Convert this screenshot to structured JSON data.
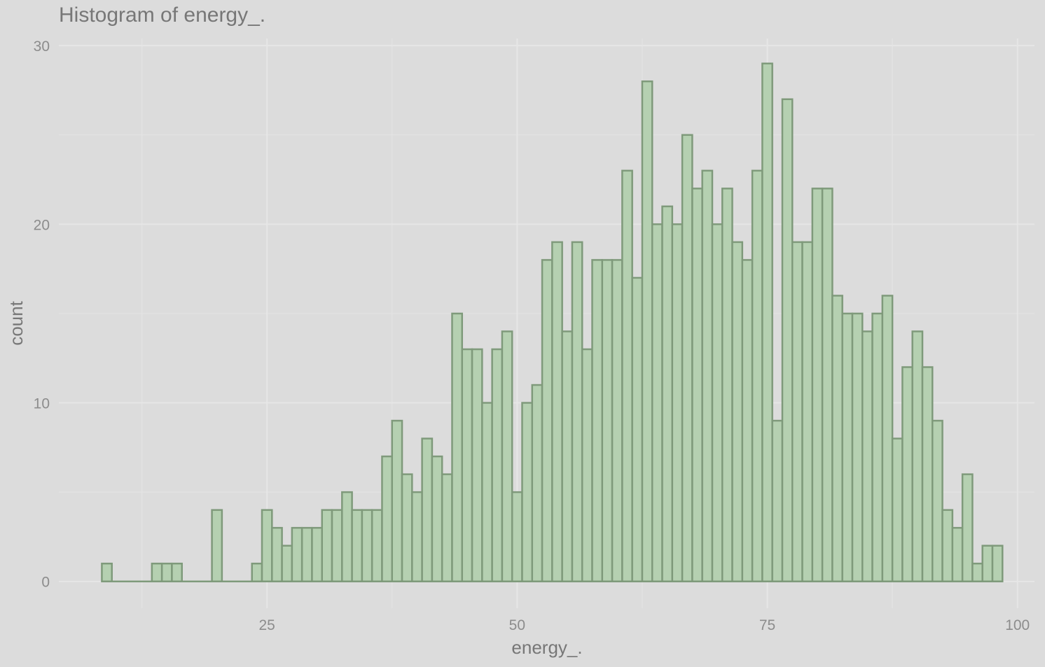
{
  "chart_data": {
    "type": "bar",
    "subtype": "histogram",
    "title": "Histogram of energy_.",
    "xlabel": "energy_.",
    "ylabel": "count",
    "xlim": [
      4.2,
      101.7
    ],
    "ylim": [
      -1.5,
      30.4
    ],
    "x_ticks": [
      25,
      50,
      75,
      100
    ],
    "y_ticks": [
      0,
      10,
      20,
      30
    ],
    "x_tick_labels": [
      "25",
      "50",
      "75",
      "100"
    ],
    "y_tick_labels": [
      "0",
      "10",
      "20",
      "30"
    ],
    "grid": true,
    "legend": "none",
    "bin_width": 1,
    "bin_start": 8.5,
    "counts": [
      1,
      0,
      0,
      0,
      0,
      1,
      1,
      1,
      0,
      0,
      0,
      4,
      0,
      0,
      0,
      1,
      4,
      3,
      2,
      3,
      3,
      3,
      4,
      4,
      5,
      4,
      4,
      4,
      7,
      9,
      6,
      5,
      8,
      7,
      6,
      15,
      13,
      13,
      10,
      13,
      14,
      5,
      10,
      11,
      18,
      19,
      14,
      19,
      13,
      18,
      18,
      18,
      23,
      17,
      28,
      20,
      21,
      20,
      25,
      22,
      23,
      20,
      22,
      19,
      18,
      23,
      29,
      9,
      27,
      19,
      19,
      22,
      22,
      16,
      15,
      15,
      14,
      15,
      16,
      8,
      12,
      14,
      12,
      9,
      4,
      3,
      6,
      1,
      2,
      2
    ],
    "colors": {
      "background": "#dcdcdc",
      "bar_fill": "#b5d0b1",
      "bar_outline": "#7f9a7b",
      "grid": "#e6e6e6",
      "text": "#777777"
    }
  }
}
